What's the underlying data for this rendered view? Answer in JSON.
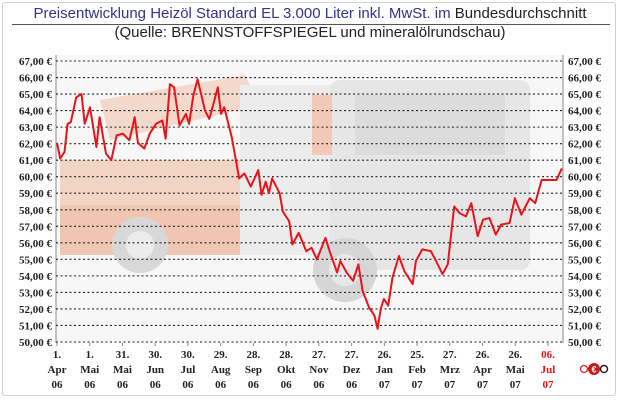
{
  "chart_data": {
    "type": "line",
    "title": "Preisentwicklung Heizöl Standard EL 3.000 Liter inkl. MwSt. im",
    "title_suffix": "Bundesdurchschnitt",
    "subtitle": "(Quelle: BRENNSTOFFSPIEGEL und mineralölrundschau)",
    "xlabel": "",
    "ylabel": "",
    "ylim": [
      50,
      67
    ],
    "y_ticks": [
      "50,00 €",
      "51,00 €",
      "52,00 €",
      "53,00 €",
      "54,00 €",
      "55,00 €",
      "56,00 €",
      "57,00 €",
      "58,00 €",
      "59,00 €",
      "60,00 €",
      "61,00 €",
      "62,00 €",
      "63,00 €",
      "64,00 €",
      "65,00 €",
      "66,00 €",
      "67,00 €"
    ],
    "y_axis_sides": "left-and-right",
    "grid": "horizontal-dotted",
    "x_ticks": [
      {
        "day": "1.",
        "month": "Apr",
        "year": "06",
        "date": "2006-04-01"
      },
      {
        "day": "1.",
        "month": "Mai",
        "year": "06",
        "date": "2006-05-01"
      },
      {
        "day": "31.",
        "month": "Mai",
        "year": "06",
        "date": "2006-05-31"
      },
      {
        "day": "30.",
        "month": "Jun",
        "year": "06",
        "date": "2006-06-30"
      },
      {
        "day": "30.",
        "month": "Jul",
        "year": "06",
        "date": "2006-07-30"
      },
      {
        "day": "29.",
        "month": "Aug",
        "year": "06",
        "date": "2006-08-29"
      },
      {
        "day": "28.",
        "month": "Sep",
        "year": "06",
        "date": "2006-09-28"
      },
      {
        "day": "28.",
        "month": "Okt",
        "year": "06",
        "date": "2006-10-28"
      },
      {
        "day": "27.",
        "month": "Nov",
        "year": "06",
        "date": "2006-11-27"
      },
      {
        "day": "27.",
        "month": "Dez",
        "year": "06",
        "date": "2006-12-27"
      },
      {
        "day": "26.",
        "month": "Jan",
        "year": "07",
        "date": "2007-01-26"
      },
      {
        "day": "25.",
        "month": "Feb",
        "year": "07",
        "date": "2007-02-25"
      },
      {
        "day": "27.",
        "month": "Mrz",
        "year": "07",
        "date": "2007-03-27"
      },
      {
        "day": "26.",
        "month": "Apr",
        "year": "07",
        "date": "2007-04-26"
      },
      {
        "day": "26.",
        "month": "Mai",
        "year": "07",
        "date": "2007-05-26"
      },
      {
        "day": "06.",
        "month": "Jul",
        "year": "07",
        "date": "2007-07-06",
        "highlight": true
      }
    ],
    "series": [
      {
        "color": "#e8141a",
        "points": [
          [
            "2006-04-01",
            62.05
          ],
          [
            "2006-04-04",
            61.1
          ],
          [
            "2006-04-08",
            61.5
          ],
          [
            "2006-04-11",
            63.2
          ],
          [
            "2006-04-14",
            63.3
          ],
          [
            "2006-04-19",
            64.8
          ],
          [
            "2006-04-24",
            65.0
          ],
          [
            "2006-04-27",
            63.2
          ],
          [
            "2006-05-02",
            64.2
          ],
          [
            "2006-05-08",
            61.8
          ],
          [
            "2006-05-11",
            63.6
          ],
          [
            "2006-05-17",
            61.4
          ],
          [
            "2006-05-22",
            61.0
          ],
          [
            "2006-05-27",
            62.5
          ],
          [
            "2006-06-02",
            62.6
          ],
          [
            "2006-06-08",
            62.2
          ],
          [
            "2006-06-13",
            63.6
          ],
          [
            "2006-06-16",
            62.05
          ],
          [
            "2006-06-22",
            61.7
          ],
          [
            "2006-06-27",
            62.6
          ],
          [
            "2006-07-03",
            63.2
          ],
          [
            "2006-07-09",
            63.4
          ],
          [
            "2006-07-12",
            62.3
          ],
          [
            "2006-07-16",
            65.6
          ],
          [
            "2006-07-20",
            65.4
          ],
          [
            "2006-07-25",
            63.1
          ],
          [
            "2006-07-31",
            63.8
          ],
          [
            "2006-08-03",
            63.2
          ],
          [
            "2006-08-07",
            64.9
          ],
          [
            "2006-08-11",
            65.9
          ],
          [
            "2006-08-18",
            64.0
          ],
          [
            "2006-08-22",
            63.5
          ],
          [
            "2006-08-25",
            64.2
          ],
          [
            "2006-08-30",
            65.4
          ],
          [
            "2006-09-02",
            63.8
          ],
          [
            "2006-09-05",
            64.2
          ],
          [
            "2006-09-12",
            62.4
          ],
          [
            "2006-09-16",
            61.0
          ],
          [
            "2006-09-19",
            59.9
          ],
          [
            "2006-09-24",
            60.2
          ],
          [
            "2006-09-30",
            59.4
          ],
          [
            "2006-10-07",
            60.4
          ],
          [
            "2006-10-10",
            58.9
          ],
          [
            "2006-10-14",
            59.7
          ],
          [
            "2006-10-17",
            59.0
          ],
          [
            "2006-10-20",
            59.9
          ],
          [
            "2006-10-27",
            59.0
          ],
          [
            "2006-10-30",
            57.9
          ],
          [
            "2006-11-05",
            57.3
          ],
          [
            "2006-11-08",
            55.9
          ],
          [
            "2006-11-14",
            56.6
          ],
          [
            "2006-11-21",
            55.5
          ],
          [
            "2006-11-26",
            55.7
          ],
          [
            "2006-12-01",
            55.0
          ],
          [
            "2006-12-09",
            56.3
          ],
          [
            "2006-12-13",
            55.5
          ],
          [
            "2006-12-20",
            54.2
          ],
          [
            "2006-12-23",
            54.9
          ],
          [
            "2006-12-29",
            54.2
          ],
          [
            "2007-01-04",
            53.7
          ],
          [
            "2007-01-09",
            54.7
          ],
          [
            "2007-01-13",
            53.1
          ],
          [
            "2007-01-19",
            52.1
          ],
          [
            "2007-01-24",
            51.6
          ],
          [
            "2007-01-27",
            50.8
          ],
          [
            "2007-01-30",
            52.0
          ],
          [
            "2007-02-02",
            52.6
          ],
          [
            "2007-02-06",
            52.2
          ],
          [
            "2007-02-10",
            53.9
          ],
          [
            "2007-02-16",
            55.2
          ],
          [
            "2007-02-21",
            54.3
          ],
          [
            "2007-02-26",
            53.8
          ],
          [
            "2007-03-01",
            53.5
          ],
          [
            "2007-03-04",
            54.9
          ],
          [
            "2007-03-10",
            55.6
          ],
          [
            "2007-03-18",
            55.5
          ],
          [
            "2007-03-23",
            54.9
          ],
          [
            "2007-03-29",
            54.1
          ],
          [
            "2007-04-03",
            54.7
          ],
          [
            "2007-04-09",
            58.2
          ],
          [
            "2007-04-14",
            57.8
          ],
          [
            "2007-04-20",
            57.6
          ],
          [
            "2007-04-25",
            58.4
          ],
          [
            "2007-05-01",
            56.4
          ],
          [
            "2007-05-06",
            57.4
          ],
          [
            "2007-05-12",
            57.5
          ],
          [
            "2007-05-18",
            56.5
          ],
          [
            "2007-05-23",
            57.1
          ],
          [
            "2007-05-31",
            57.2
          ],
          [
            "2007-06-05",
            58.7
          ],
          [
            "2007-06-11",
            57.7
          ],
          [
            "2007-06-19",
            58.7
          ],
          [
            "2007-06-24",
            58.4
          ],
          [
            "2007-06-30",
            59.8
          ],
          [
            "2007-07-08",
            59.8
          ],
          [
            "2007-07-14",
            59.8
          ],
          [
            "2007-07-19",
            60.5
          ]
        ]
      }
    ]
  },
  "colors": {
    "title": "#33338a",
    "line": "#e8141a",
    "highlight_tick": "#e8141a"
  },
  "logo": {
    "icon": "copyright-euro-logo-icon",
    "text": "©€O"
  }
}
